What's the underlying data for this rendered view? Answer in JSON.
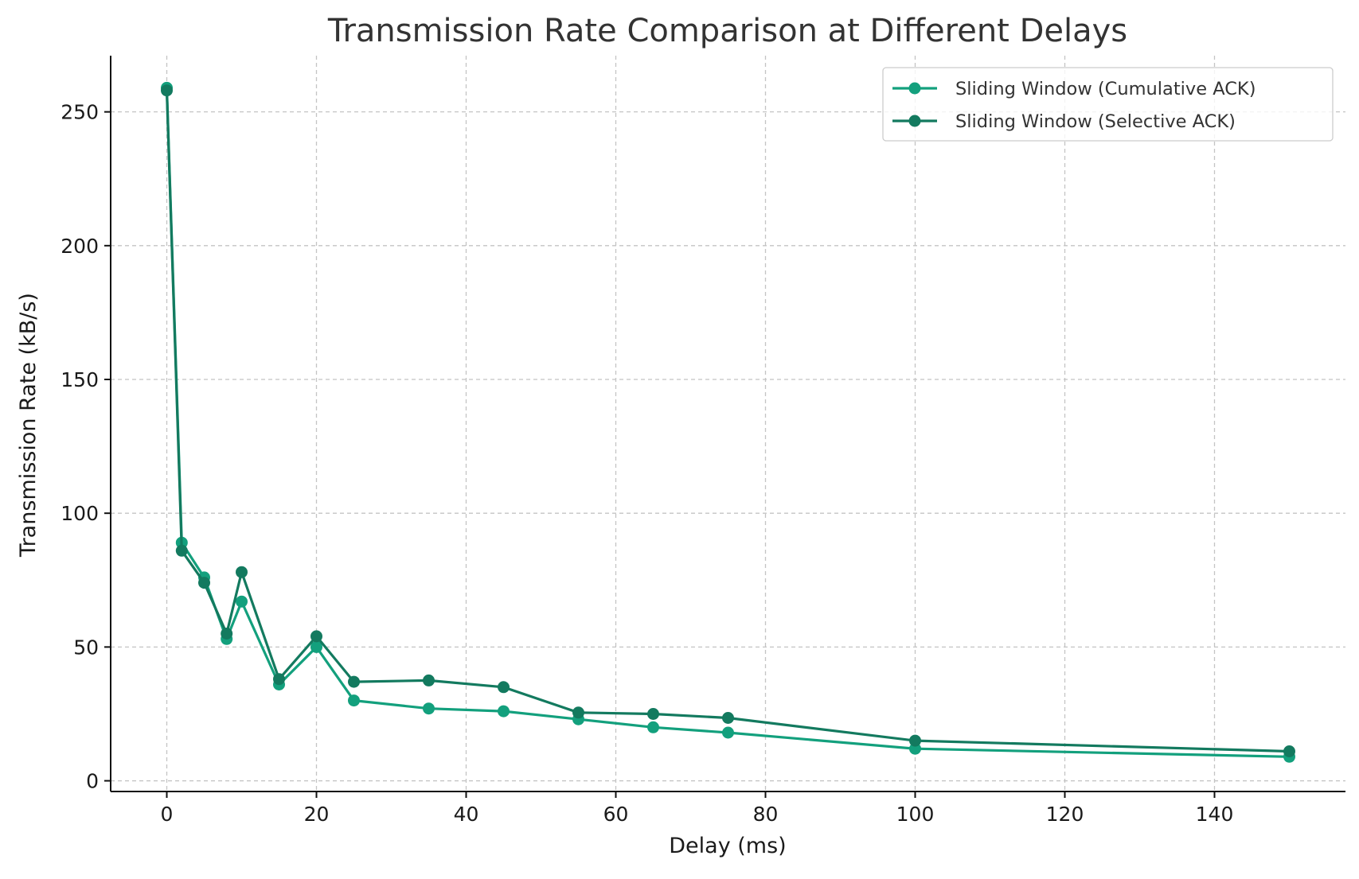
{
  "chart_data": {
    "type": "line",
    "title": "Transmission Rate Comparison at Different Delays",
    "xlabel": "Delay (ms)",
    "ylabel": "Transmission Rate (kB/s)",
    "xlim": [
      -7.5,
      157.5
    ],
    "ylim": [
      -4,
      271
    ],
    "xticks": [
      0,
      20,
      40,
      60,
      80,
      100,
      120,
      140
    ],
    "yticks": [
      0,
      50,
      100,
      150,
      200,
      250
    ],
    "grid": true,
    "legend_position": "top-right",
    "x": [
      0,
      2,
      5,
      8,
      10,
      15,
      20,
      25,
      35,
      45,
      55,
      65,
      75,
      100,
      150
    ],
    "series": [
      {
        "name": "Sliding Window (Cumulative ACK)",
        "color": "#13a07d",
        "values": [
          259,
          89,
          76,
          53,
          67,
          36,
          50,
          30,
          27,
          26,
          23,
          20,
          18,
          12,
          9
        ]
      },
      {
        "name": "Sliding Window (Selective ACK)",
        "color": "#137a5f",
        "values": [
          258,
          86,
          74,
          55,
          78,
          38,
          54,
          37,
          37.5,
          35,
          25.5,
          25,
          23.5,
          15,
          11
        ]
      }
    ]
  }
}
